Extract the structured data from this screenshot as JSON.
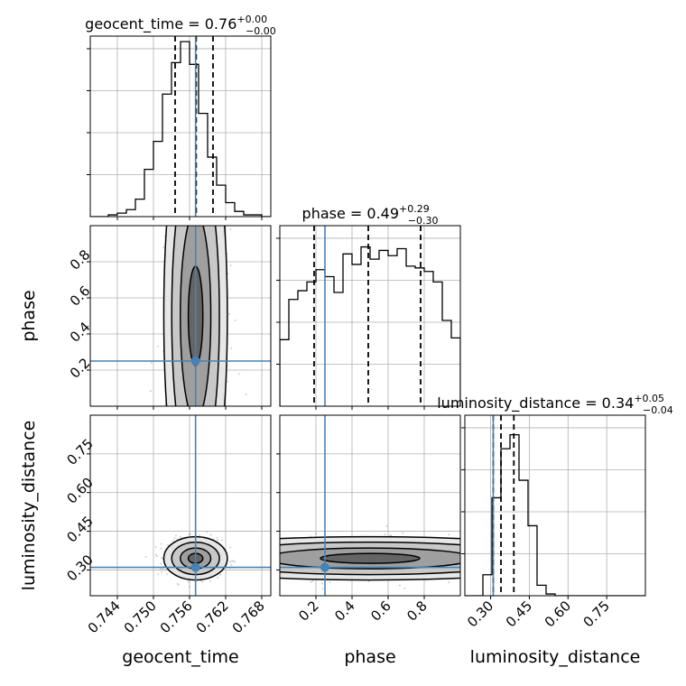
{
  "chart_data": {
    "type": "corner",
    "truth_color": "#4682b4",
    "hist_color": "#000000",
    "grid": true,
    "parameters": [
      {
        "name": "geocent_time",
        "title": {
          "prefix": "geocent_time = 0.76",
          "plus": "+0.00",
          "minus": "−0.00"
        },
        "range": [
          0.7395,
          0.7695
        ],
        "ticks": [
          "0.744",
          "0.750",
          "0.756",
          "0.762",
          "0.768"
        ],
        "tick_values": [
          0.744,
          0.75,
          0.756,
          0.762,
          0.768
        ],
        "quantiles": [
          0.7536,
          0.7571,
          0.7599
        ],
        "truth": 0.757,
        "hist_edges_start": 0.7395,
        "hist_bin_width": 0.0015,
        "hist_heights": [
          0,
          0,
          0.01,
          0.02,
          0.04,
          0.1,
          0.27,
          0.43,
          0.7,
          0.88,
          1.0,
          0.87,
          0.59,
          0.34,
          0.18,
          0.08,
          0.03,
          0.01,
          0.01,
          0
        ]
      },
      {
        "name": "phase",
        "title": {
          "prefix": "phase = 0.49",
          "plus": "+0.29",
          "minus": "−0.30"
        },
        "range": [
          0.0,
          1.0
        ],
        "ticks": [
          "0.2",
          "0.4",
          "0.6",
          "0.8"
        ],
        "tick_values": [
          0.2,
          0.4,
          0.6,
          0.8
        ],
        "quantiles": [
          0.19,
          0.49,
          0.78
        ],
        "truth": 0.25,
        "hist_edges_start": 0.0,
        "hist_bin_width": 0.05,
        "hist_heights": [
          0.38,
          0.61,
          0.66,
          0.71,
          0.78,
          0.74,
          0.65,
          0.87,
          0.81,
          0.91,
          0.84,
          0.89,
          0.86,
          0.9,
          0.8,
          0.79,
          0.77,
          0.71,
          0.49,
          0.39
        ]
      },
      {
        "name": "luminosity_distance",
        "title": {
          "prefix": "luminosity_distance = 0.34",
          "plus": "+0.05",
          "minus": "−0.04"
        },
        "range": [
          0.2,
          0.9
        ],
        "ticks": [
          "0.30",
          "0.45",
          "0.60",
          "0.75"
        ],
        "tick_values": [
          0.3,
          0.45,
          0.6,
          0.75
        ],
        "quantiles": [
          0.31,
          0.34,
          0.39
        ],
        "truth": 0.31,
        "hist_edges_start": 0.2,
        "hist_bin_width": 0.035,
        "hist_heights": [
          0,
          0,
          0.12,
          0.56,
          0.84,
          0.92,
          0.66,
          0.4,
          0.06,
          0.01,
          0,
          0,
          0,
          0,
          0,
          0,
          0,
          0,
          0,
          0
        ]
      }
    ],
    "row_ticks": {
      "phase": [
        "0.2",
        "0.4",
        "0.6",
        "0.8"
      ],
      "luminosity_distance": [
        "0.30",
        "0.45",
        "0.60",
        "0.75"
      ]
    },
    "pairs": [
      {
        "x": "geocent_time",
        "y": "phase",
        "center_x": 0.757,
        "center_y": 0.5,
        "spread_x": 0.0022,
        "spread_y": 0.28,
        "shape": "uniform_y"
      },
      {
        "x": "geocent_time",
        "y": "luminosity_distance",
        "center_x": 0.757,
        "center_y": 0.345,
        "spread_x": 0.0022,
        "spread_y": 0.035,
        "shape": "gaussian"
      },
      {
        "x": "phase",
        "y": "luminosity_distance",
        "center_x": 0.5,
        "center_y": 0.345,
        "spread_x": 0.28,
        "spread_y": 0.035,
        "shape": "uniform_x"
      }
    ]
  }
}
